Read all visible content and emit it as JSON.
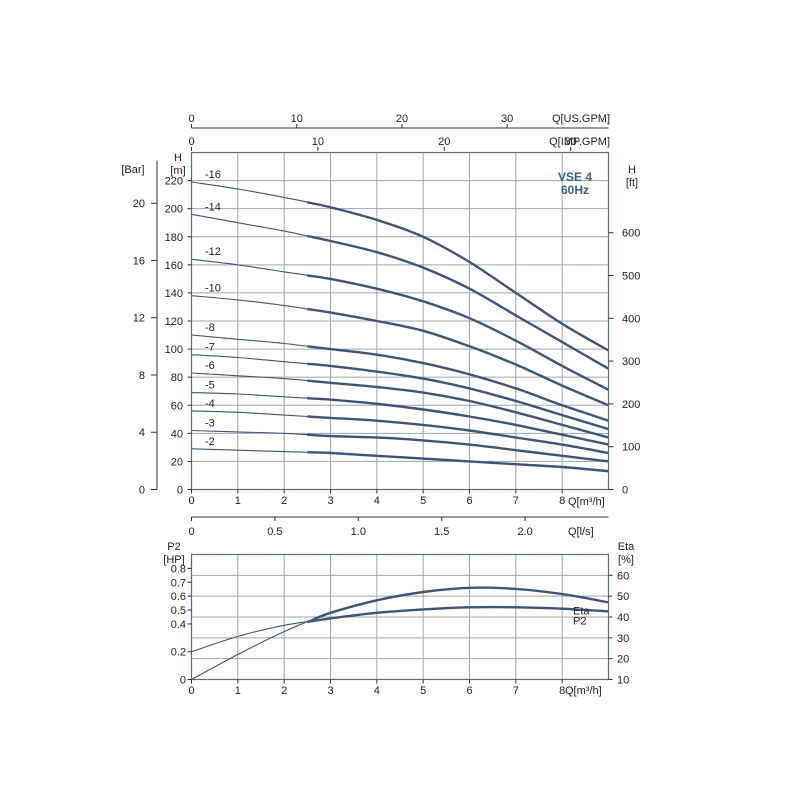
{
  "chart_data": [
    {
      "type": "line",
      "model_label": [
        "VSE 4",
        "60Hz"
      ],
      "top_axes": [
        {
          "label": "Q[US.GPM]",
          "ticks": [
            0,
            10,
            20,
            30
          ],
          "per_m3h": 4.4029
        },
        {
          "label": "Q[IMP.GPM]",
          "ticks": [
            0,
            10,
            20,
            30
          ],
          "per_m3h": 3.6662
        }
      ],
      "x": {
        "label": "Q[m³/h]",
        "lim": [
          0,
          9
        ],
        "ticks": [
          0,
          1,
          2,
          3,
          4,
          5,
          6,
          7,
          8
        ]
      },
      "x_secondary": {
        "label": "Q[l/s]",
        "ticks": [
          "0",
          "0.5",
          "1.0",
          "1.5",
          "2.0"
        ],
        "tick_values": [
          0,
          0.5,
          1.0,
          1.5,
          2.0
        ]
      },
      "y_left_bar": {
        "label": "[Bar]",
        "ticks": [
          0,
          4,
          8,
          12,
          16,
          20
        ],
        "per_m": 0.0981
      },
      "y_left_m": {
        "label": [
          "H",
          "[m]"
        ],
        "lim": [
          0,
          240
        ],
        "ticks": [
          0,
          20,
          40,
          60,
          80,
          100,
          120,
          140,
          160,
          180,
          200,
          220
        ]
      },
      "y_right_ft": {
        "label": [
          "H",
          "[ft]"
        ],
        "ticks": [
          0,
          100,
          200,
          300,
          400,
          500,
          600
        ],
        "per_m": 3.2808
      },
      "grid": true,
      "recommended_range": [
        2.5,
        9
      ],
      "series": [
        {
          "name": "-16",
          "x": [
            0,
            1,
            2,
            3,
            4,
            5,
            6,
            7,
            8,
            9
          ],
          "y": [
            219,
            214,
            208,
            201,
            192,
            180,
            162,
            140,
            118,
            99
          ]
        },
        {
          "name": "-14",
          "x": [
            0,
            1,
            2,
            3,
            4,
            5,
            6,
            7,
            8,
            9
          ],
          "y": [
            196,
            190,
            184,
            177,
            169,
            158,
            143,
            124,
            105,
            86
          ]
        },
        {
          "name": "-12",
          "x": [
            0,
            1,
            2,
            3,
            4,
            5,
            6,
            7,
            8,
            9
          ],
          "y": [
            164,
            160,
            155,
            150,
            143,
            134,
            122,
            106,
            88,
            71
          ]
        },
        {
          "name": "-10",
          "x": [
            0,
            1,
            2,
            3,
            4,
            5,
            6,
            7,
            8,
            9
          ],
          "y": [
            138,
            135,
            131,
            126,
            120,
            113,
            102,
            89,
            74,
            60
          ]
        },
        {
          "name": "-8",
          "x": [
            0,
            1,
            2,
            3,
            4,
            5,
            6,
            7,
            8,
            9
          ],
          "y": [
            110,
            107,
            104,
            100,
            96,
            90,
            82,
            72,
            60,
            49
          ]
        },
        {
          "name": "-7",
          "x": [
            0,
            1,
            2,
            3,
            4,
            5,
            6,
            7,
            8,
            9
          ],
          "y": [
            96,
            94,
            91,
            88,
            84,
            79,
            72,
            63,
            53,
            43
          ]
        },
        {
          "name": "-6",
          "x": [
            0,
            1,
            2,
            3,
            4,
            5,
            6,
            7,
            8,
            9
          ],
          "y": [
            83,
            81,
            79,
            76,
            73,
            69,
            63,
            55,
            46,
            37
          ]
        },
        {
          "name": "-5",
          "x": [
            0,
            1,
            2,
            3,
            4,
            5,
            6,
            7,
            8,
            9
          ],
          "y": [
            69,
            68,
            66,
            64,
            61,
            57,
            52,
            46,
            39,
            32
          ]
        },
        {
          "name": "-4",
          "x": [
            0,
            1,
            2,
            3,
            4,
            5,
            6,
            7,
            8,
            9
          ],
          "y": [
            56,
            55,
            53,
            51,
            49,
            46,
            42,
            37,
            32,
            26
          ]
        },
        {
          "name": "-3",
          "x": [
            0,
            1,
            2,
            3,
            4,
            5,
            6,
            7,
            8,
            9
          ],
          "y": [
            42,
            41,
            40,
            38,
            37,
            35,
            32,
            28,
            24,
            20
          ]
        },
        {
          "name": "-2",
          "x": [
            0,
            1,
            2,
            3,
            4,
            5,
            6,
            7,
            8,
            9
          ],
          "y": [
            29,
            28,
            27,
            26,
            24,
            22,
            20,
            18,
            16,
            13
          ]
        }
      ]
    },
    {
      "type": "line",
      "x": {
        "label": "Q[m³/h]",
        "lim": [
          0,
          9
        ],
        "ticks": [
          0,
          1,
          2,
          3,
          4,
          5,
          6,
          7,
          8
        ]
      },
      "y_left": {
        "label": [
          "P2",
          "[HP]"
        ],
        "lim": [
          0,
          0.9
        ],
        "ticks": [
          "0",
          "0.2",
          "0.4",
          "0.5",
          "0.6",
          "0.7",
          "0.8"
        ],
        "tick_values": [
          0,
          0.2,
          0.4,
          0.5,
          0.6,
          0.7,
          0.8
        ]
      },
      "y_right": {
        "label": [
          "Eta",
          "[%]"
        ],
        "lim": [
          10,
          70
        ],
        "ticks": [
          10,
          20,
          30,
          40,
          50,
          60
        ]
      },
      "grid": true,
      "recommended_range": [
        2.5,
        9
      ],
      "series": [
        {
          "name": "Eta",
          "axis": "right",
          "x": [
            0,
            1,
            2,
            3,
            4,
            5,
            6,
            7,
            8,
            9
          ],
          "y": [
            10,
            22,
            33,
            42,
            48,
            52,
            54,
            53.5,
            51,
            47
          ]
        },
        {
          "name": "P2",
          "axis": "left",
          "x": [
            0,
            1,
            2,
            3,
            4,
            5,
            6,
            7,
            8,
            9
          ],
          "y": [
            0.2,
            0.31,
            0.39,
            0.44,
            0.48,
            0.505,
            0.52,
            0.52,
            0.51,
            0.49
          ]
        }
      ]
    }
  ]
}
